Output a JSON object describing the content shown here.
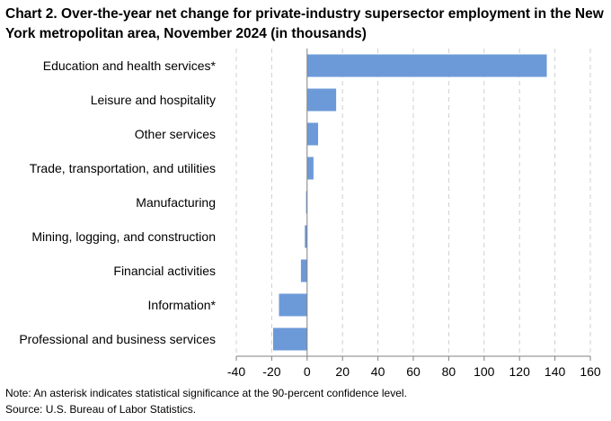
{
  "chart_data": {
    "type": "bar",
    "orientation": "horizontal",
    "title": "Chart 2. Over-the-year net change for private-industry supersector employment in the New York metropolitan area, November 2024 (in thousands)",
    "categories": [
      "Education and health services*",
      "Leisure and hospitality",
      "Other services",
      "Trade, transportation, and utilities",
      "Manufacturing",
      "Mining, logging, and construction",
      "Financial activities",
      "Information*",
      "Professional and business services"
    ],
    "values": [
      135.4,
      16.4,
      6.2,
      3.6,
      -0.6,
      -1.3,
      -3.5,
      -15.9,
      -19.2
    ],
    "xlim": [
      -40,
      160
    ],
    "xticks": [
      "-40",
      "-20",
      "0",
      "20",
      "40",
      "60",
      "80",
      "100",
      "120",
      "140",
      "160"
    ],
    "grid": "vertical dashed",
    "bar_color": "#6c9ad9",
    "note": "Note: An asterisk indicates statistical significance at the 90-percent confidence level.",
    "source": "Source: U.S. Bureau of Labor Statistics."
  }
}
